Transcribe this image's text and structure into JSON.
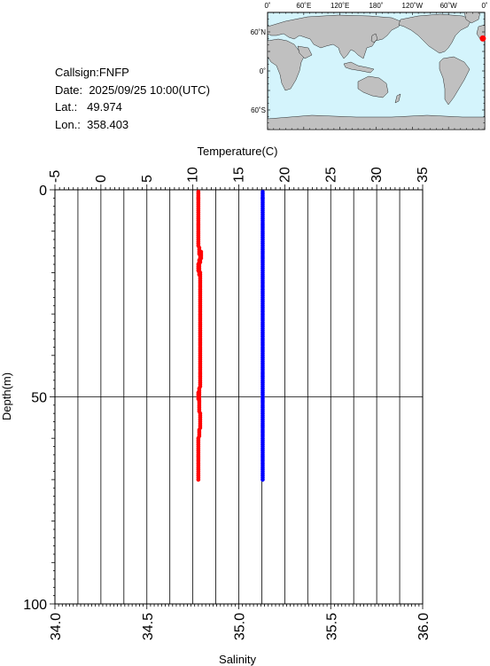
{
  "info": {
    "callsign_label": "Callsign:",
    "callsign": "FNFP",
    "date_label": "Date:",
    "date": "2025/09/25 10:00(UTC)",
    "lat_label": "Lat.:",
    "lat": "49.974",
    "lon_label": "Lon.:",
    "lon": "358.403"
  },
  "map": {
    "lon_ticks": [
      "0˚",
      "60˚E",
      "120˚E",
      "180˚",
      "120˚W",
      "60˚W",
      "0˚"
    ],
    "lat_ticks": [
      "60˚N",
      "0˚",
      "60˚S"
    ],
    "ocean_color": "#d4f4fc",
    "land_color": "#c0c0c0",
    "marker_color": "#ff0000",
    "marker_lon": 358.403,
    "marker_lat": 49.974
  },
  "chart_data": {
    "type": "scatter",
    "top_axis": {
      "label": "Temperature(C)",
      "range": [
        -5,
        35
      ],
      "ticks": [
        -5,
        0,
        5,
        10,
        15,
        20,
        25,
        30,
        35
      ]
    },
    "bottom_axis": {
      "label": "Salinity",
      "range": [
        34.0,
        36.0
      ],
      "ticks": [
        "34.0",
        "34.5",
        "35.0",
        "35.5",
        "36.0"
      ]
    },
    "y_axis": {
      "label": "Depth(m)",
      "range": [
        0,
        100
      ],
      "inverted": true,
      "ticks": [
        0,
        50,
        100
      ]
    },
    "grid": true,
    "series": [
      {
        "color": "#ff0000",
        "axis": "top",
        "points": [
          [
            10.6,
            0.5
          ],
          [
            10.6,
            2
          ],
          [
            10.6,
            4
          ],
          [
            10.6,
            6
          ],
          [
            10.6,
            8
          ],
          [
            10.6,
            10
          ],
          [
            10.6,
            12
          ],
          [
            10.7,
            14
          ],
          [
            10.9,
            15
          ],
          [
            10.8,
            16
          ],
          [
            10.7,
            17
          ],
          [
            10.6,
            18
          ],
          [
            10.7,
            19
          ],
          [
            10.8,
            20
          ],
          [
            10.8,
            22
          ],
          [
            10.8,
            24
          ],
          [
            10.8,
            26
          ],
          [
            10.8,
            28
          ],
          [
            10.8,
            30
          ],
          [
            10.8,
            32
          ],
          [
            10.8,
            34
          ],
          [
            10.8,
            36
          ],
          [
            10.8,
            38
          ],
          [
            10.8,
            40
          ],
          [
            10.8,
            42
          ],
          [
            10.8,
            44
          ],
          [
            10.8,
            46
          ],
          [
            10.7,
            48
          ],
          [
            10.6,
            49
          ],
          [
            10.7,
            50
          ],
          [
            10.7,
            52
          ],
          [
            10.8,
            54
          ],
          [
            10.8,
            56
          ],
          [
            10.7,
            58
          ],
          [
            10.6,
            60
          ],
          [
            10.6,
            62
          ],
          [
            10.6,
            64
          ],
          [
            10.6,
            66
          ],
          [
            10.6,
            68
          ],
          [
            10.6,
            70
          ]
        ]
      },
      {
        "color": "#0000ff",
        "axis": "bottom",
        "points": [
          [
            35.13,
            0.5
          ],
          [
            35.13,
            2
          ],
          [
            35.13,
            4
          ],
          [
            35.13,
            6
          ],
          [
            35.13,
            8
          ],
          [
            35.13,
            10
          ],
          [
            35.13,
            12
          ],
          [
            35.13,
            14
          ],
          [
            35.13,
            16
          ],
          [
            35.13,
            18
          ],
          [
            35.13,
            20
          ],
          [
            35.13,
            22
          ],
          [
            35.13,
            24
          ],
          [
            35.13,
            26
          ],
          [
            35.13,
            28
          ],
          [
            35.13,
            30
          ],
          [
            35.13,
            32
          ],
          [
            35.13,
            34
          ],
          [
            35.13,
            36
          ],
          [
            35.13,
            38
          ],
          [
            35.13,
            40
          ],
          [
            35.13,
            42
          ],
          [
            35.13,
            44
          ],
          [
            35.13,
            46
          ],
          [
            35.13,
            48
          ],
          [
            35.13,
            50
          ],
          [
            35.13,
            52
          ],
          [
            35.13,
            54
          ],
          [
            35.13,
            56
          ],
          [
            35.13,
            58
          ],
          [
            35.13,
            60
          ],
          [
            35.13,
            62
          ],
          [
            35.13,
            64
          ],
          [
            35.13,
            66
          ],
          [
            35.13,
            68
          ],
          [
            35.13,
            70
          ]
        ]
      }
    ]
  }
}
